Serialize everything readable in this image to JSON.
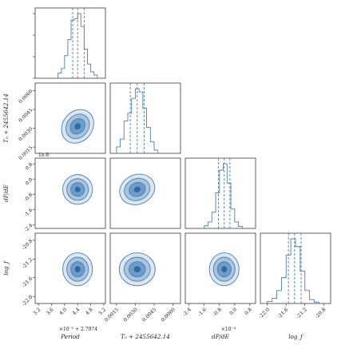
{
  "chart_data": {
    "type": "corner",
    "parameters": [
      {
        "label": "Period",
        "tick_labels": [
          "3.2",
          "3.6",
          "4.0",
          "4.4",
          "4.8",
          "5.2"
        ],
        "x_offset_label": "×10⁻⁵ + 2.7974",
        "median": 4.4,
        "q16": 4.25,
        "q84": 4.6,
        "hist_edges": [
          3.8,
          3.9,
          4.0,
          4.1,
          4.2,
          4.3,
          4.4,
          4.5,
          4.6,
          4.7,
          4.8,
          4.9,
          5.0
        ],
        "hist_counts": [
          0.08,
          0.15,
          0.35,
          0.6,
          0.9,
          0.92,
          1.0,
          0.8,
          0.45,
          0.22,
          0.1,
          0.05
        ],
        "range": [
          3.1,
          5.25
        ]
      },
      {
        "label": "T₀ + 2455642.14",
        "tick_labels": [
          "0.0015",
          "0.0030",
          "0.0045",
          "0.0060"
        ],
        "median": 0.00315,
        "q16": 0.0026,
        "q84": 0.0037,
        "hist_edges": [
          0.0015,
          0.0018,
          0.0021,
          0.0024,
          0.0027,
          0.003,
          0.0033,
          0.0036,
          0.0039,
          0.0042,
          0.0045,
          0.0048
        ],
        "hist_counts": [
          0.1,
          0.22,
          0.5,
          0.62,
          0.85,
          1.0,
          0.95,
          0.7,
          0.4,
          0.18,
          0.05
        ],
        "range": [
          0.001,
          0.0066
        ]
      },
      {
        "label": "dP/dE",
        "tick_labels": [
          "-2.4",
          "-1.6",
          "-0.8",
          "0.0",
          "0.8"
        ],
        "x_offset_label": "×10⁻⁸",
        "y_offset_label": "1e-8",
        "median": -0.55,
        "q16": -0.85,
        "q84": -0.25,
        "hist_edges": [
          -1.6,
          -1.4,
          -1.2,
          -1.0,
          -0.8,
          -0.6,
          -0.4,
          -0.2,
          0.0,
          0.2,
          0.4
        ],
        "hist_counts": [
          0.04,
          0.1,
          0.25,
          0.55,
          0.9,
          1.0,
          0.7,
          0.3,
          0.1,
          0.03
        ],
        "range": [
          -2.6,
          1.1
        ]
      },
      {
        "label": "log_f",
        "tick_labels": [
          "-22.0",
          "-21.6",
          "-21.2",
          "-20.8"
        ],
        "median": -21.42,
        "q16": -21.55,
        "q84": -21.28,
        "hist_edges": [
          -22.0,
          -21.9,
          -21.8,
          -21.7,
          -21.6,
          -21.5,
          -21.4,
          -21.3,
          -21.2,
          -21.1,
          -21.0,
          -20.9
        ],
        "hist_counts": [
          0.03,
          0.08,
          0.2,
          0.4,
          0.75,
          1.0,
          0.88,
          0.5,
          0.2,
          0.06,
          0.02
        ],
        "range": [
          -22.15,
          -20.65
        ]
      }
    ]
  }
}
